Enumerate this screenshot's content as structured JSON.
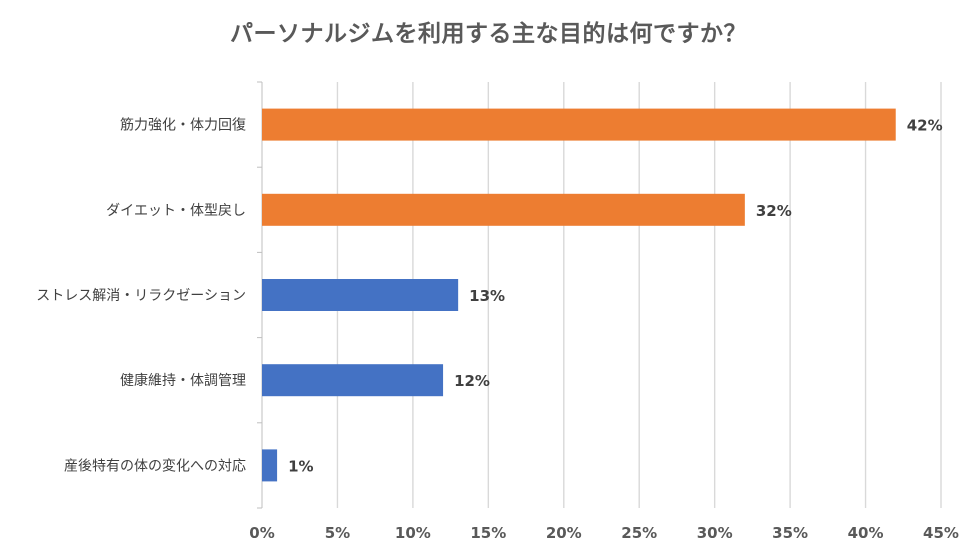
{
  "chart_data": {
    "type": "bar",
    "orientation": "horizontal",
    "title": "パーソナルジムを利用する主な目的は何ですか？",
    "categories": [
      "筋力強化・体力回復",
      "ダイエット・体型戻し",
      "ストレス解消・リラクゼーション",
      "健康維持・体調管理",
      "産後特有の体の変化への対応"
    ],
    "values": [
      42,
      32,
      13,
      12,
      1
    ],
    "value_labels": [
      "42%",
      "32%",
      "13%",
      "12%",
      "1%"
    ],
    "bar_colors": [
      "#ED7D31",
      "#ED7D31",
      "#4472C4",
      "#4472C4",
      "#4472C4"
    ],
    "xlim": [
      0,
      45
    ],
    "x_ticks": [
      0,
      5,
      10,
      15,
      20,
      25,
      30,
      35,
      40,
      45
    ],
    "x_tick_labels": [
      "0%",
      "5%",
      "10%",
      "15%",
      "20%",
      "25%",
      "30%",
      "35%",
      "40%",
      "45%"
    ],
    "grid": true,
    "legend": "none"
  }
}
